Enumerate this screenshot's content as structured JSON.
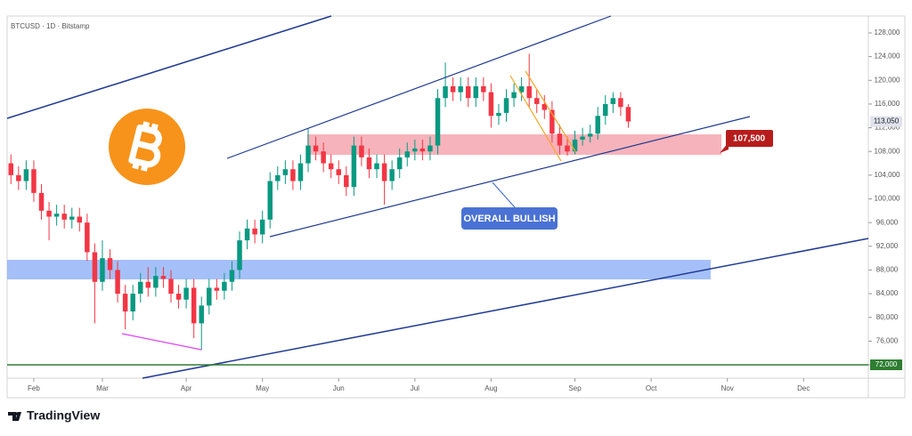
{
  "chart_data": {
    "type": "candlestick",
    "title": "BTCUSD · 1D · Bitstamp",
    "brand": "TradingView",
    "annotations": [
      "OVERALL BULLISH",
      "107,500"
    ],
    "categories": [
      null,
      null,
      null,
      "Feb",
      null,
      null,
      null,
      null,
      null,
      null,
      null,
      null,
      "Mar",
      null,
      null,
      null,
      null,
      null,
      null,
      null,
      null,
      null,
      null,
      "Apr",
      null,
      null,
      null,
      null,
      null,
      null,
      null,
      null,
      null,
      "May",
      null,
      null,
      null,
      null,
      null,
      null,
      null,
      null,
      null,
      "Jun",
      null,
      null,
      null,
      null,
      null,
      null,
      null,
      null,
      null,
      "Jul",
      null,
      null,
      null,
      null,
      null,
      null,
      null,
      null,
      null,
      "Aug",
      null,
      null,
      null,
      null,
      null,
      null,
      null,
      null,
      null,
      null,
      "Sep",
      null,
      null,
      null,
      null,
      null,
      null,
      null,
      null,
      null,
      "Oct",
      null,
      null,
      null,
      null,
      null,
      null,
      null,
      null,
      null,
      "Nov",
      null,
      null,
      null,
      null,
      null,
      null,
      null,
      null,
      null,
      "Dec",
      null,
      null,
      null,
      null,
      null,
      null,
      null,
      null
    ],
    "open": [
      106000,
      104000,
      103000,
      105000,
      101000,
      98000,
      97000,
      97500,
      96500,
      97000,
      96000,
      91000,
      86000,
      90000,
      88000,
      84000,
      81000,
      84000,
      86000,
      85000,
      87000,
      86500,
      84000,
      83000,
      85000,
      79000,
      82000,
      85000,
      84500,
      86000,
      88000,
      93000,
      95000,
      94000,
      96500,
      103000,
      104000,
      105000,
      103000,
      106000,
      109000,
      108000,
      106000,
      105000,
      104000,
      102000,
      109000,
      107000,
      105000,
      106000,
      103000,
      105000,
      107000,
      108000,
      108500,
      108000,
      109000,
      117000,
      119000,
      118000,
      119000,
      117000,
      119000,
      118000,
      114000,
      114500,
      117000,
      118000,
      119000,
      117000,
      116000,
      115000,
      111000,
      109000,
      108000,
      110000,
      110500,
      111000,
      114000,
      116000,
      117000,
      115500,
      null,
      null,
      null,
      null,
      null,
      null,
      null,
      null,
      null,
      null,
      null,
      null,
      null,
      null,
      null,
      null,
      null,
      null,
      null,
      null,
      null,
      null,
      null,
      null,
      null,
      null,
      null,
      null,
      null,
      null,
      null
    ],
    "high": [
      107500,
      105500,
      106500,
      106500,
      102500,
      99500,
      99000,
      99000,
      98500,
      98500,
      97500,
      92500,
      93000,
      91500,
      89500,
      85500,
      85500,
      87500,
      88500,
      88500,
      88500,
      88000,
      85500,
      86500,
      86500,
      83500,
      86500,
      86500,
      87500,
      89500,
      94500,
      96500,
      96500,
      98000,
      104500,
      105500,
      106500,
      106500,
      107500,
      111800,
      110500,
      109500,
      107500,
      106500,
      105500,
      110500,
      110500,
      108500,
      107500,
      107500,
      106500,
      108500,
      109500,
      110000,
      110000,
      110500,
      118500,
      123000,
      120500,
      120500,
      120500,
      120500,
      120500,
      119500,
      116000,
      118500,
      119500,
      120500,
      124500,
      118500,
      117500,
      116500,
      112500,
      110500,
      111500,
      112000,
      112500,
      115500,
      117500,
      118000,
      118000,
      116000,
      null,
      null,
      null,
      null,
      null,
      null,
      null,
      null,
      null,
      null,
      null,
      null,
      null,
      null,
      null,
      null,
      null,
      null,
      null,
      null,
      null,
      null,
      null,
      null,
      null,
      null,
      null,
      null,
      null,
      null,
      null
    ],
    "low": [
      102500,
      101500,
      101500,
      99500,
      96500,
      93000,
      95500,
      95000,
      95000,
      94500,
      89500,
      79000,
      84500,
      86500,
      82500,
      78000,
      79500,
      82500,
      83500,
      83500,
      85000,
      82500,
      81500,
      81500,
      76500,
      74500,
      80500,
      83000,
      83000,
      84500,
      86500,
      91500,
      92500,
      92500,
      95000,
      101500,
      102500,
      101500,
      101500,
      104500,
      106500,
      104500,
      103500,
      102500,
      100500,
      100500,
      105500,
      103500,
      103500,
      99000,
      101500,
      103500,
      105500,
      106500,
      106500,
      106500,
      107500,
      115500,
      116500,
      116500,
      115500,
      115500,
      116500,
      112000,
      112500,
      113000,
      115500,
      116500,
      115500,
      114500,
      113500,
      109500,
      107500,
      107300,
      107500,
      109000,
      109500,
      110000,
      112500,
      114500,
      114000,
      112000,
      null,
      null,
      null,
      null,
      null,
      null,
      null,
      null,
      null,
      null,
      null,
      null,
      null,
      null,
      null,
      null,
      null,
      null,
      null,
      null,
      null,
      null,
      null,
      null,
      null,
      null,
      null,
      null,
      null,
      null,
      null
    ],
    "close": [
      104000,
      103000,
      105000,
      101000,
      98000,
      97000,
      97500,
      96500,
      97000,
      96000,
      91000,
      86000,
      90000,
      88000,
      84000,
      81000,
      84000,
      86000,
      85000,
      87000,
      86500,
      84000,
      83000,
      85000,
      79000,
      82000,
      85000,
      84500,
      86000,
      88000,
      93000,
      95000,
      94000,
      96500,
      103000,
      104000,
      105000,
      103000,
      106000,
      109000,
      108000,
      106000,
      105000,
      104000,
      102000,
      109000,
      107000,
      105000,
      106000,
      103000,
      105000,
      107000,
      108000,
      108500,
      108000,
      109000,
      117000,
      119000,
      118000,
      119000,
      117000,
      119000,
      118000,
      114000,
      114500,
      117000,
      118000,
      119000,
      117000,
      116000,
      115000,
      111000,
      109000,
      108000,
      110000,
      110500,
      111000,
      114000,
      116000,
      117000,
      115500,
      113050,
      null,
      null,
      null,
      null,
      null,
      null,
      null,
      null,
      null,
      null,
      null,
      null,
      null,
      null,
      null,
      null,
      null,
      null,
      null,
      null,
      null,
      null,
      null,
      null,
      null,
      null,
      null,
      null,
      null,
      null,
      null
    ],
    "up_color": "#089981",
    "down_color": "#f23645",
    "ylim": [
      69750,
      130850
    ],
    "yticks": [
      {
        "value": 72000,
        "label": "72,000"
      },
      {
        "value": 76000,
        "label": "76,000"
      },
      {
        "value": 80000,
        "label": "80,000"
      },
      {
        "value": 84000,
        "label": "84,000"
      },
      {
        "value": 88000,
        "label": "88,000"
      },
      {
        "value": 92000,
        "label": "92,000"
      },
      {
        "value": 96000,
        "label": "96,000"
      },
      {
        "value": 100000,
        "label": "100,000"
      },
      {
        "value": 104000,
        "label": "104,000"
      },
      {
        "value": 108000,
        "label": "108,000"
      },
      {
        "value": 112000,
        "label": "112,000"
      },
      {
        "value": 116000,
        "label": "116,000"
      },
      {
        "value": 120000,
        "label": "120,000"
      },
      {
        "value": 124000,
        "label": "124,000"
      },
      {
        "value": 128000,
        "label": "128,000"
      }
    ],
    "grid": false,
    "level": {
      "value": 72000,
      "label": "72,000",
      "color": "#2e7d32"
    },
    "last_price": {
      "value": 113050,
      "label": "113,050"
    }
  }
}
